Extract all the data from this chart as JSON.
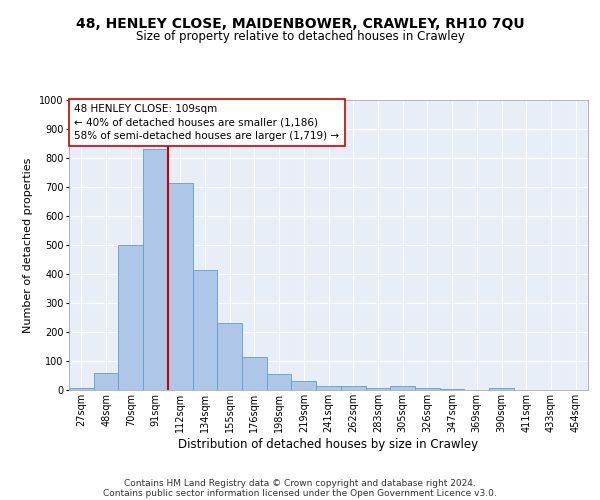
{
  "title1": "48, HENLEY CLOSE, MAIDENBOWER, CRAWLEY, RH10 7QU",
  "title2": "Size of property relative to detached houses in Crawley",
  "xlabel": "Distribution of detached houses by size in Crawley",
  "ylabel": "Number of detached properties",
  "bin_labels": [
    "27sqm",
    "48sqm",
    "70sqm",
    "91sqm",
    "112sqm",
    "134sqm",
    "155sqm",
    "176sqm",
    "198sqm",
    "219sqm",
    "241sqm",
    "262sqm",
    "283sqm",
    "305sqm",
    "326sqm",
    "347sqm",
    "369sqm",
    "390sqm",
    "411sqm",
    "433sqm",
    "454sqm"
  ],
  "bar_values": [
    7,
    57,
    500,
    830,
    715,
    415,
    230,
    115,
    55,
    32,
    15,
    13,
    8,
    13,
    8,
    5,
    0,
    8,
    0,
    0,
    0
  ],
  "bar_color": "#aec6e8",
  "bar_edge_color": "#5a9fd4",
  "annotation_line1": "48 HENLEY CLOSE: 109sqm",
  "annotation_line2": "← 40% of detached houses are smaller (1,186)",
  "annotation_line3": "58% of semi-detached houses are larger (1,719) →",
  "vline_color": "#cc0000",
  "annotation_box_facecolor": "#ffffff",
  "annotation_box_edgecolor": "#cc0000",
  "footer_line1": "Contains HM Land Registry data © Crown copyright and database right 2024.",
  "footer_line2": "Contains public sector information licensed under the Open Government Licence v3.0.",
  "ylim": [
    0,
    1000
  ],
  "yticks": [
    0,
    100,
    200,
    300,
    400,
    500,
    600,
    700,
    800,
    900,
    1000
  ],
  "background_color": "#e8eef8",
  "grid_color": "#ffffff",
  "title1_fontsize": 10,
  "title2_fontsize": 8.5,
  "xlabel_fontsize": 8.5,
  "ylabel_fontsize": 8,
  "tick_fontsize": 7,
  "annotation_fontsize": 7.5,
  "footer_fontsize": 6.5,
  "vline_x_data": 4.0
}
